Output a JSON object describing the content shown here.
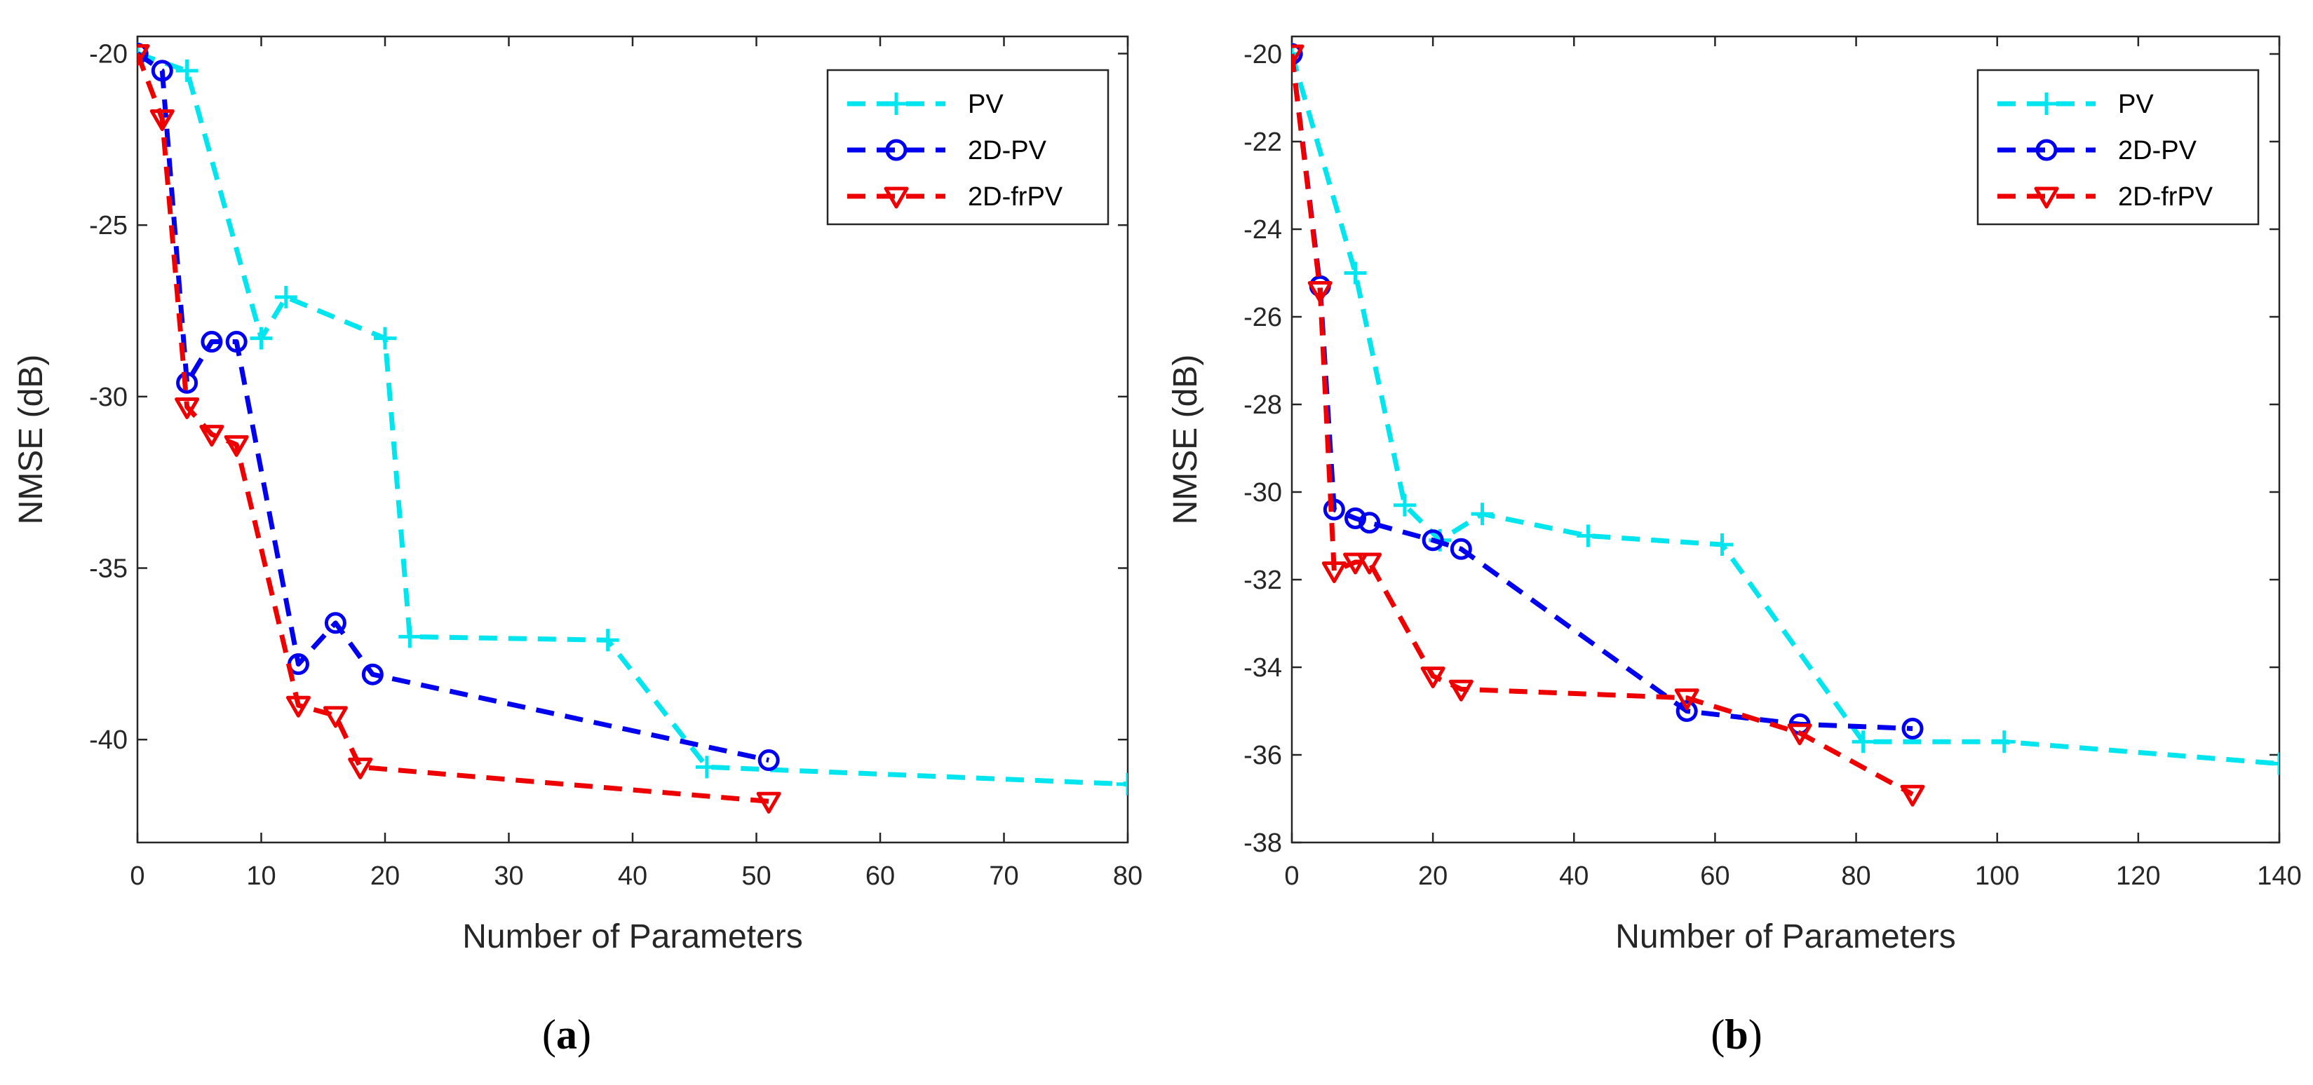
{
  "chart_data": [
    {
      "type": "line",
      "caption_letter": "a",
      "xlabel": "Number of Parameters",
      "ylabel": "NMSE (dB)",
      "xlim": [
        0,
        80
      ],
      "ylim": [
        -43,
        -19.5
      ],
      "xticks": [
        0,
        10,
        20,
        30,
        40,
        50,
        60,
        70,
        80
      ],
      "yticks": [
        -20,
        -25,
        -30,
        -35,
        -40
      ],
      "grid": false,
      "legend_position": "top-right",
      "series": [
        {
          "name": "PV",
          "color": "#00e5ee",
          "marker": "plus",
          "x": [
            0,
            4,
            10,
            12,
            20,
            22,
            38,
            46,
            80
          ],
          "y": [
            -20,
            -20.5,
            -28.3,
            -27.1,
            -28.3,
            -37.0,
            -37.1,
            -40.8,
            -41.3
          ]
        },
        {
          "name": "2D-PV",
          "color": "#0000ee",
          "marker": "circle",
          "x": [
            0,
            2,
            4,
            6,
            8,
            13,
            16,
            19,
            51
          ],
          "y": [
            -20,
            -20.5,
            -29.6,
            -28.4,
            -28.4,
            -37.8,
            -36.6,
            -38.1,
            -40.6
          ]
        },
        {
          "name": "2D-frPV",
          "color": "#ee0000",
          "marker": "triangle-down",
          "x": [
            0,
            2,
            4,
            6,
            8,
            13,
            16,
            18,
            51
          ],
          "y": [
            -20,
            -21.9,
            -30.3,
            -31.1,
            -31.4,
            -39.0,
            -39.3,
            -40.8,
            -41.8
          ]
        }
      ]
    },
    {
      "type": "line",
      "caption_letter": "b",
      "xlabel": "Number of Parameters",
      "ylabel": "NMSE (dB)",
      "xlim": [
        0,
        140
      ],
      "ylim": [
        -38,
        -19.6
      ],
      "xticks": [
        0,
        20,
        40,
        60,
        80,
        100,
        120,
        140
      ],
      "yticks": [
        -20,
        -22,
        -24,
        -26,
        -28,
        -30,
        -32,
        -34,
        -36,
        -38
      ],
      "grid": false,
      "legend_position": "top-right",
      "series": [
        {
          "name": "PV",
          "color": "#00e5ee",
          "marker": "plus",
          "x": [
            0,
            9,
            16,
            21,
            27,
            42,
            61,
            81,
            101,
            140
          ],
          "y": [
            -20,
            -25.0,
            -30.3,
            -31.1,
            -30.5,
            -31.0,
            -31.2,
            -35.7,
            -35.7,
            -36.2
          ]
        },
        {
          "name": "2D-PV",
          "color": "#0000ee",
          "marker": "circle",
          "x": [
            0,
            4,
            6,
            9,
            11,
            20,
            24,
            56,
            72,
            88
          ],
          "y": [
            -20,
            -25.3,
            -30.4,
            -30.6,
            -30.7,
            -31.1,
            -31.3,
            -35.0,
            -35.3,
            -35.4
          ]
        },
        {
          "name": "2D-frPV",
          "color": "#ee0000",
          "marker": "triangle-down",
          "x": [
            0,
            4,
            6,
            9,
            11,
            20,
            24,
            56,
            72,
            88
          ],
          "y": [
            -20,
            -25.4,
            -31.8,
            -31.6,
            -31.6,
            -34.2,
            -34.5,
            -34.7,
            -35.5,
            -36.9
          ]
        }
      ]
    }
  ]
}
